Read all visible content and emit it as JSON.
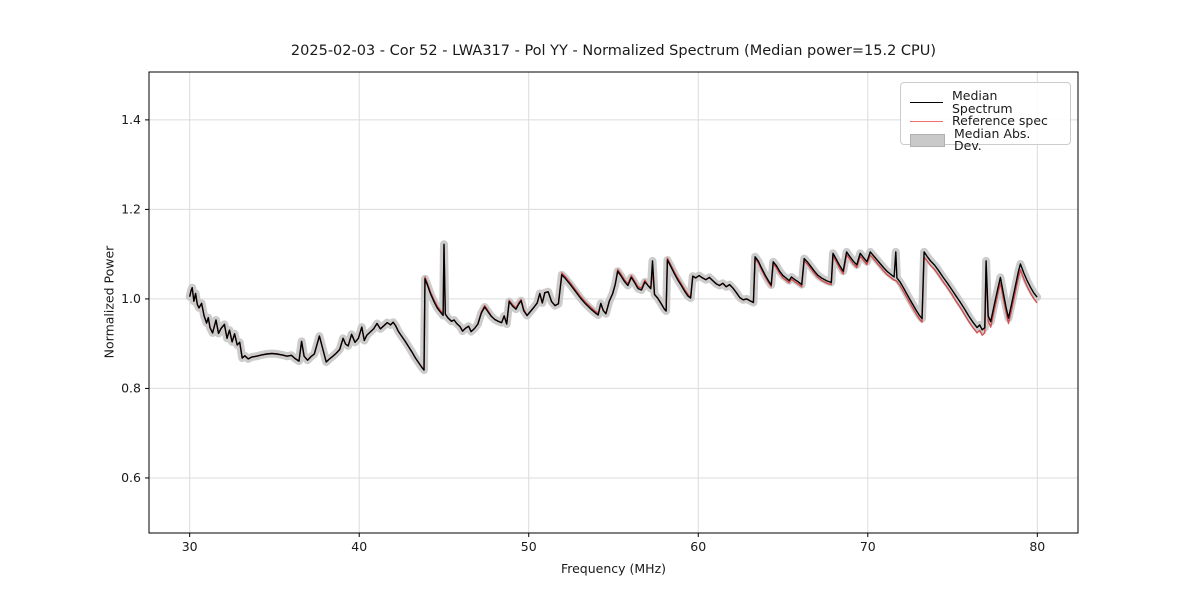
{
  "title": "2025-02-03 - Cor 52 - LWA317 - Pol YY - Normalized Spectrum (Median power=15.2 CPU)",
  "axes": {
    "xlabel": "Frequency (MHz)",
    "ylabel": "Normalized Power",
    "xticks": [
      30,
      40,
      50,
      60,
      70,
      80
    ],
    "xtick_labels": [
      "30",
      "40",
      "50",
      "60",
      "70",
      "80"
    ],
    "yticks": [
      0.6,
      0.8,
      1.0,
      1.2,
      1.4
    ],
    "ytick_labels": [
      "0.6",
      "0.8",
      "1.0",
      "1.2",
      "1.4"
    ],
    "xlim": [
      27.6,
      82.4
    ],
    "ylim": [
      0.477,
      1.507
    ],
    "grid": true,
    "grid_color": "#dcdcdc"
  },
  "legend": {
    "position": "upper right",
    "items": [
      {
        "label": "Median Spectrum",
        "type": "line",
        "color": "#000000"
      },
      {
        "label": "Reference spec",
        "type": "line",
        "color": "#ef6e6e"
      },
      {
        "label": "Median Abs. Dev.",
        "type": "patch",
        "color": "#c9c9c9"
      }
    ]
  },
  "chart_data": {
    "type": "line",
    "title": "2025-02-03 - Cor 52 - LWA317 - Pol YY - Normalized Spectrum (Median power=15.2 CPU)",
    "xlabel": "Frequency (MHz)",
    "ylabel": "Normalized Power",
    "xlim": [
      27.6,
      82.4
    ],
    "ylim": [
      0.477,
      1.507
    ],
    "x": [
      30,
      30.08,
      30.15,
      30.25,
      30.35,
      30.45,
      30.55,
      30.7,
      30.85,
      31,
      31.1,
      31.2,
      31.35,
      31.55,
      31.7,
      31.85,
      32.05,
      32.2,
      32.35,
      32.5,
      32.65,
      32.8,
      32.95,
      33.1,
      33.25,
      33.45,
      33.65,
      33.95,
      34.25,
      34.55,
      34.85,
      35.15,
      35.45,
      35.75,
      36,
      36.2,
      36.45,
      36.6,
      36.75,
      36.95,
      37.15,
      37.35,
      37.65,
      37.85,
      38.05,
      38.25,
      38.45,
      38.65,
      38.85,
      39.05,
      39.2,
      39.35,
      39.55,
      39.75,
      39.95,
      40.15,
      40.3,
      40.45,
      40.65,
      40.85,
      41.05,
      41.25,
      41.45,
      41.65,
      41.85,
      42,
      42.15,
      42.3,
      42.5,
      42.7,
      42.9,
      43.1,
      43.3,
      43.5,
      43.7,
      43.82,
      43.88,
      44.05,
      44.2,
      44.4,
      44.6,
      44.8,
      44.95,
      45,
      45.08,
      45.25,
      45.45,
      45.6,
      45.75,
      45.95,
      46.1,
      46.25,
      46.45,
      46.6,
      46.8,
      47,
      47.2,
      47.4,
      47.6,
      47.8,
      48,
      48.2,
      48.4,
      48.55,
      48.7,
      48.85,
      49.05,
      49.25,
      49.4,
      49.55,
      49.7,
      49.9,
      50.1,
      50.3,
      50.5,
      50.65,
      50.8,
      50.95,
      51.15,
      51.35,
      51.55,
      51.75,
      51.95,
      52.15,
      52.45,
      52.75,
      53.05,
      53.35,
      53.65,
      53.95,
      54.1,
      54.25,
      54.4,
      54.55,
      54.75,
      54.95,
      55.1,
      55.25,
      55.45,
      55.65,
      55.85,
      56.05,
      56.25,
      56.45,
      56.65,
      56.85,
      57.05,
      57.2,
      57.3,
      57.42,
      57.6,
      57.8,
      58,
      58.1,
      58.18,
      58.4,
      58.6,
      58.8,
      59,
      59.2,
      59.4,
      59.55,
      59.68,
      59.85,
      60.05,
      60.25,
      60.45,
      60.65,
      60.85,
      61.05,
      61.25,
      61.45,
      61.65,
      61.85,
      62.05,
      62.25,
      62.45,
      62.65,
      62.85,
      63.05,
      63.25,
      63.35,
      63.55,
      63.75,
      63.95,
      64.15,
      64.3,
      64.42,
      64.6,
      64.8,
      65,
      65.2,
      65.35,
      65.5,
      65.7,
      65.9,
      66.1,
      66.25,
      66.45,
      66.65,
      66.85,
      67.05,
      67.3,
      67.6,
      67.85,
      67.95,
      68.15,
      68.35,
      68.55,
      68.75,
      68.95,
      69.15,
      69.35,
      69.55,
      69.75,
      69.95,
      70.15,
      70.35,
      70.55,
      70.75,
      70.95,
      71.15,
      71.35,
      71.55,
      71.65,
      71.72,
      71.9,
      72.1,
      72.35,
      72.6,
      72.85,
      73.05,
      73.2,
      73.32,
      73.5,
      73.7,
      73.95,
      74.2,
      74.45,
      74.7,
      74.95,
      75.2,
      75.45,
      75.7,
      75.95,
      76.2,
      76.45,
      76.6,
      76.75,
      76.9,
      76.98,
      77.1,
      77.25,
      77.45,
      77.65,
      77.82,
      78,
      78.15,
      78.3,
      78.5,
      78.7,
      78.88,
      79,
      79.2,
      79.4,
      79.6,
      79.8,
      79.99
    ],
    "series": [
      {
        "name": "Median Spectrum",
        "color": "#000000",
        "y": [
          1.005,
          1.018,
          1.025,
          0.995,
          1.012,
          0.988,
          0.98,
          0.99,
          0.962,
          0.946,
          0.958,
          0.936,
          0.924,
          0.953,
          0.923,
          0.934,
          0.943,
          0.912,
          0.93,
          0.904,
          0.922,
          0.897,
          0.903,
          0.868,
          0.873,
          0.866,
          0.87,
          0.872,
          0.875,
          0.877,
          0.878,
          0.877,
          0.875,
          0.872,
          0.874,
          0.867,
          0.861,
          0.905,
          0.872,
          0.863,
          0.871,
          0.877,
          0.917,
          0.888,
          0.859,
          0.866,
          0.872,
          0.879,
          0.887,
          0.912,
          0.899,
          0.895,
          0.921,
          0.903,
          0.912,
          0.937,
          0.907,
          0.919,
          0.926,
          0.933,
          0.945,
          0.933,
          0.94,
          0.947,
          0.942,
          0.948,
          0.94,
          0.928,
          0.917,
          0.906,
          0.894,
          0.882,
          0.869,
          0.858,
          0.847,
          0.841,
          1.045,
          1.028,
          1.012,
          0.995,
          0.98,
          0.97,
          0.963,
          1.122,
          0.966,
          0.957,
          0.95,
          0.953,
          0.945,
          0.938,
          0.928,
          0.934,
          0.939,
          0.927,
          0.934,
          0.944,
          0.968,
          0.982,
          0.971,
          0.961,
          0.954,
          0.95,
          0.947,
          0.962,
          0.944,
          0.994,
          0.984,
          0.977,
          0.988,
          0.996,
          0.974,
          0.963,
          0.972,
          0.981,
          0.991,
          1.012,
          0.991,
          1.014,
          1.016,
          0.994,
          0.985,
          0.989,
          1.054,
          1.046,
          1.032,
          1.017,
          1.002,
          0.989,
          0.978,
          0.968,
          0.964,
          0.99,
          0.974,
          0.967,
          0.995,
          1.012,
          1.032,
          1.062,
          1.051,
          1.039,
          1.03,
          1.048,
          1.036,
          1.023,
          1.02,
          1.038,
          1.029,
          1.023,
          1.085,
          1.01,
          1.002,
          0.99,
          0.977,
          0.973,
          1.087,
          1.071,
          1.056,
          1.042,
          1.03,
          1.017,
          1.006,
          1.002,
          1.051,
          1.047,
          1.052,
          1.047,
          1.043,
          1.048,
          1.041,
          1.034,
          1.03,
          1.035,
          1.027,
          1.032,
          1.024,
          1.014,
          1.003,
          0.998,
          1.0,
          0.996,
          0.992,
          1.094,
          1.084,
          1.068,
          1.053,
          1.04,
          1.031,
          1.083,
          1.075,
          1.062,
          1.052,
          1.046,
          1.041,
          1.049,
          1.043,
          1.038,
          1.032,
          1.09,
          1.082,
          1.072,
          1.062,
          1.053,
          1.046,
          1.04,
          1.037,
          1.102,
          1.088,
          1.074,
          1.062,
          1.105,
          1.094,
          1.084,
          1.076,
          1.102,
          1.092,
          1.083,
          1.105,
          1.096,
          1.087,
          1.078,
          1.069,
          1.061,
          1.055,
          1.049,
          1.105,
          1.047,
          1.038,
          1.025,
          1.008,
          0.991,
          0.975,
          0.963,
          0.956,
          1.105,
          1.095,
          1.085,
          1.075,
          1.062,
          1.048,
          1.035,
          1.021,
          1.007,
          0.993,
          0.978,
          0.962,
          0.948,
          0.936,
          0.942,
          0.931,
          0.936,
          1.085,
          0.962,
          0.949,
          0.985,
          1.02,
          1.048,
          1.012,
          0.982,
          0.957,
          0.992,
          1.028,
          1.06,
          1.078,
          1.058,
          1.041,
          1.026,
          1.013,
          1.004
        ]
      },
      {
        "name": "Reference spec",
        "color": "#d23b3b",
        "y": [
          1.005,
          1.018,
          1.025,
          0.995,
          1.012,
          0.988,
          0.98,
          0.99,
          0.962,
          0.946,
          0.958,
          0.936,
          0.924,
          0.953,
          0.923,
          0.934,
          0.943,
          0.912,
          0.93,
          0.904,
          0.922,
          0.897,
          0.903,
          0.868,
          0.873,
          0.866,
          0.87,
          0.872,
          0.875,
          0.877,
          0.878,
          0.877,
          0.875,
          0.872,
          0.874,
          0.867,
          0.861,
          0.905,
          0.872,
          0.863,
          0.871,
          0.877,
          0.917,
          0.888,
          0.859,
          0.866,
          0.872,
          0.879,
          0.887,
          0.912,
          0.899,
          0.895,
          0.921,
          0.903,
          0.912,
          0.937,
          0.907,
          0.919,
          0.926,
          0.933,
          0.945,
          0.933,
          0.94,
          0.947,
          0.942,
          0.948,
          0.94,
          0.928,
          0.917,
          0.906,
          0.894,
          0.882,
          0.869,
          0.858,
          0.847,
          0.841,
          1.049,
          1.032,
          1.016,
          0.999,
          0.984,
          0.974,
          0.967,
          1.118,
          0.966,
          0.957,
          0.95,
          0.953,
          0.945,
          0.938,
          0.928,
          0.934,
          0.939,
          0.927,
          0.934,
          0.944,
          0.971,
          0.985,
          0.974,
          0.961,
          0.954,
          0.95,
          0.947,
          0.962,
          0.944,
          0.997,
          0.987,
          0.98,
          0.991,
          0.999,
          0.977,
          0.963,
          0.972,
          0.981,
          0.991,
          1.012,
          0.991,
          1.014,
          1.016,
          0.994,
          0.985,
          0.989,
          1.058,
          1.05,
          1.036,
          1.021,
          1.006,
          0.993,
          0.982,
          0.972,
          0.968,
          0.99,
          0.974,
          0.967,
          0.995,
          1.012,
          1.032,
          1.066,
          1.055,
          1.043,
          1.034,
          1.052,
          1.04,
          1.027,
          1.024,
          1.042,
          1.029,
          1.023,
          1.062,
          1.01,
          1.002,
          0.99,
          0.977,
          0.973,
          1.091,
          1.075,
          1.06,
          1.046,
          1.034,
          1.021,
          1.01,
          1.002,
          1.051,
          1.047,
          1.052,
          1.047,
          1.043,
          1.048,
          1.041,
          1.034,
          1.03,
          1.035,
          1.027,
          1.032,
          1.024,
          1.014,
          1.003,
          0.998,
          1.0,
          0.996,
          0.992,
          1.09,
          1.08,
          1.064,
          1.049,
          1.036,
          1.027,
          1.078,
          1.07,
          1.057,
          1.047,
          1.041,
          1.036,
          1.044,
          1.038,
          1.033,
          1.027,
          1.085,
          1.077,
          1.067,
          1.057,
          1.048,
          1.041,
          1.035,
          1.032,
          1.096,
          1.082,
          1.068,
          1.056,
          1.099,
          1.088,
          1.078,
          1.07,
          1.096,
          1.086,
          1.077,
          1.098,
          1.089,
          1.08,
          1.071,
          1.062,
          1.054,
          1.048,
          1.042,
          1.041,
          1.039,
          1.03,
          1.017,
          1.0,
          0.983,
          0.967,
          0.955,
          0.948,
          1.094,
          1.085,
          1.075,
          1.065,
          1.052,
          1.038,
          1.025,
          1.011,
          0.995,
          0.981,
          0.966,
          0.95,
          0.936,
          0.924,
          0.93,
          0.919,
          0.924,
          1.072,
          0.95,
          0.937,
          0.973,
          1.008,
          1.036,
          1.0,
          0.97,
          0.945,
          0.979,
          1.015,
          1.047,
          1.065,
          1.045,
          1.028,
          1.013,
          1.0,
          0.991
        ]
      },
      {
        "name": "Median Abs. Dev.",
        "type": "band",
        "around": "Median Spectrum",
        "halfwidth": 0.008,
        "color": "#c7c7c7"
      }
    ]
  }
}
